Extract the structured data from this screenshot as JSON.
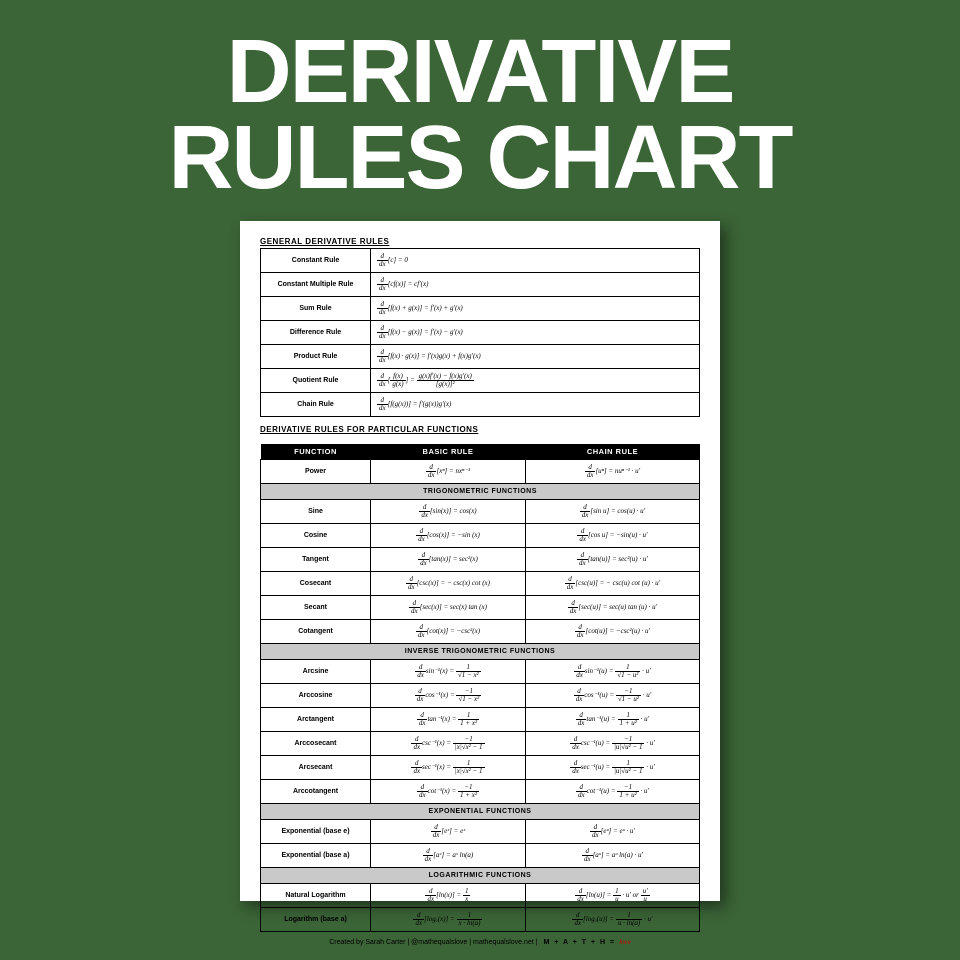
{
  "title_line1": "DERIVATIVE",
  "title_line2": "RULES CHART",
  "section1_head": "GENERAL DERIVATIVE RULES",
  "general_rules": [
    {
      "name": "Constant Rule",
      "formula_html": "<span class='frac'><span class='n'>d</span><span class='d'>dx</span></span>[c] = 0"
    },
    {
      "name": "Constant Multiple Rule",
      "formula_html": "<span class='frac'><span class='n'>d</span><span class='d'>dx</span></span>[cf(x)] = cf′(x)"
    },
    {
      "name": "Sum Rule",
      "formula_html": "<span class='frac'><span class='n'>d</span><span class='d'>dx</span></span>[f(x) + g(x)] = f′(x) + g′(x)"
    },
    {
      "name": "Difference Rule",
      "formula_html": "<span class='frac'><span class='n'>d</span><span class='d'>dx</span></span>[f(x) − g(x)] = f′(x) − g′(x)"
    },
    {
      "name": "Product Rule",
      "formula_html": "<span class='frac'><span class='n'>d</span><span class='d'>dx</span></span>[f(x) · g(x)] = f′(x)g(x) + f(x)g′(x)"
    },
    {
      "name": "Quotient Rule",
      "formula_html": "<span class='frac'><span class='n'>d</span><span class='d'>dx</span></span>[<span class='frac'><span class='n'>f(x)</span><span class='d'>g(x)</span></span>] = <span class='frac'><span class='n'>g(x)f′(x) − f(x)g′(x)</span><span class='d'>[g(x)]²</span></span>"
    },
    {
      "name": "Chain Rule",
      "formula_html": "<span class='frac'><span class='n'>d</span><span class='d'>dx</span></span>[f(g(x))] = f′(g(x))g′(x)"
    }
  ],
  "section2_head": "DERIVATIVE RULES FOR PARTICULAR FUNCTIONS",
  "col_function": "FUNCTION",
  "col_basic": "BASIC RULE",
  "col_chain": "CHAIN RULE",
  "groups": [
    {
      "subhead": null,
      "rows": [
        {
          "fn": "Power",
          "basic": "<span class='frac'><span class='n'>d</span><span class='d'>dx</span></span>[xⁿ] = nxⁿ⁻¹",
          "chain": "<span class='frac'><span class='n'>d</span><span class='d'>dx</span></span>[uⁿ] = nuⁿ⁻¹ · u′"
        }
      ]
    },
    {
      "subhead": "TRIGONOMETRIC FUNCTIONS",
      "rows": [
        {
          "fn": "Sine",
          "basic": "<span class='frac'><span class='n'>d</span><span class='d'>dx</span></span>[sin(x)] = cos(x)",
          "chain": "<span class='frac'><span class='n'>d</span><span class='d'>dx</span></span>[sin u] = cos(u) · u′"
        },
        {
          "fn": "Cosine",
          "basic": "<span class='frac'><span class='n'>d</span><span class='d'>dx</span></span>[cos(x)] = −sin (x)",
          "chain": "<span class='frac'><span class='n'>d</span><span class='d'>dx</span></span>[cos u] = −sin(u) · u′"
        },
        {
          "fn": "Tangent",
          "basic": "<span class='frac'><span class='n'>d</span><span class='d'>dx</span></span>[tan(x)] = sec²(x)",
          "chain": "<span class='frac'><span class='n'>d</span><span class='d'>dx</span></span>[tan(u)] = sec²(u) · u′"
        },
        {
          "fn": "Cosecant",
          "basic": "<span class='frac'><span class='n'>d</span><span class='d'>dx</span></span>[csc(x)] = − csc(x) cot (x)",
          "chain": "<span class='frac'><span class='n'>d</span><span class='d'>dx</span></span>[csc(u)] = − csc(u) cot (u) · u′"
        },
        {
          "fn": "Secant",
          "basic": "<span class='frac'><span class='n'>d</span><span class='d'>dx</span></span>[sec(x)] = sec(x) tan (x)",
          "chain": "<span class='frac'><span class='n'>d</span><span class='d'>dx</span></span>[sec(u)] = sec(u) tan (u) · u′"
        },
        {
          "fn": "Cotangent",
          "basic": "<span class='frac'><span class='n'>d</span><span class='d'>dx</span></span>[cot(x)] = −csc²(x)",
          "chain": "<span class='frac'><span class='n'>d</span><span class='d'>dx</span></span>[cot(u)] = −csc²(u) · u′"
        }
      ]
    },
    {
      "subhead": "INVERSE TRIGONOMETRIC FUNCTIONS",
      "rows": [
        {
          "fn": "Arcsine",
          "basic": "<span class='frac'><span class='n'>d</span><span class='d'>dx</span></span>sin⁻¹(x) = <span class='frac'><span class='n'>1</span><span class='d'>√1 − x²</span></span>",
          "chain": "<span class='frac'><span class='n'>d</span><span class='d'>dx</span></span>sin⁻¹(u) = <span class='frac'><span class='n'>1</span><span class='d'>√1 − u²</span></span> · u′"
        },
        {
          "fn": "Arccosine",
          "basic": "<span class='frac'><span class='n'>d</span><span class='d'>dx</span></span>cos⁻¹(x) = <span class='frac'><span class='n'>−1</span><span class='d'>√1 − x²</span></span>",
          "chain": "<span class='frac'><span class='n'>d</span><span class='d'>dx</span></span>cos⁻¹(u) = <span class='frac'><span class='n'>−1</span><span class='d'>√1 − u²</span></span> · u′"
        },
        {
          "fn": "Arctangent",
          "basic": "<span class='frac'><span class='n'>d</span><span class='d'>dx</span></span>tan⁻¹(x) = <span class='frac'><span class='n'>1</span><span class='d'>1 + x²</span></span>",
          "chain": "<span class='frac'><span class='n'>d</span><span class='d'>dx</span></span>tan⁻¹(u) = <span class='frac'><span class='n'>1</span><span class='d'>1 + u²</span></span> · u′"
        },
        {
          "fn": "Arccosecant",
          "basic": "<span class='frac'><span class='n'>d</span><span class='d'>dx</span></span>csc⁻¹(x) = <span class='frac'><span class='n'>−1</span><span class='d'>|x|√x² − 1</span></span>",
          "chain": "<span class='frac'><span class='n'>d</span><span class='d'>dx</span></span>csc⁻¹(u) = <span class='frac'><span class='n'>−1</span><span class='d'>|u|√u² − 1</span></span> · u′"
        },
        {
          "fn": "Arcsecant",
          "basic": "<span class='frac'><span class='n'>d</span><span class='d'>dx</span></span>sec⁻¹(x) = <span class='frac'><span class='n'>1</span><span class='d'>|x|√x² − 1</span></span>",
          "chain": "<span class='frac'><span class='n'>d</span><span class='d'>dx</span></span>sec⁻¹(u) = <span class='frac'><span class='n'>1</span><span class='d'>|u|√u² − 1</span></span> · u′"
        },
        {
          "fn": "Arccotangent",
          "basic": "<span class='frac'><span class='n'>d</span><span class='d'>dx</span></span>cot⁻¹(x) = <span class='frac'><span class='n'>−1</span><span class='d'>1 + x²</span></span>",
          "chain": "<span class='frac'><span class='n'>d</span><span class='d'>dx</span></span>cot⁻¹(u) = <span class='frac'><span class='n'>−1</span><span class='d'>1 + u²</span></span> · u′"
        }
      ]
    },
    {
      "subhead": "EXPONENTIAL FUNCTIONS",
      "rows": [
        {
          "fn": "Exponential (base e)",
          "basic": "<span class='frac'><span class='n'>d</span><span class='d'>dx</span></span>[eˣ] = eˣ",
          "chain": "<span class='frac'><span class='n'>d</span><span class='d'>dx</span></span>[eᵘ] = eᵘ · u′"
        },
        {
          "fn": "Exponential (base a)",
          "basic": "<span class='frac'><span class='n'>d</span><span class='d'>dx</span></span>[aˣ] = aˣ ln(a)",
          "chain": "<span class='frac'><span class='n'>d</span><span class='d'>dx</span></span>[aᵘ] = aᵘ ln(a) · u′"
        }
      ]
    },
    {
      "subhead": "LOGARITHMIC FUNCTIONS",
      "rows": [
        {
          "fn": "Natural Logarithm",
          "basic": "<span class='frac'><span class='n'>d</span><span class='d'>dx</span></span>[ln(x)] = <span class='frac'><span class='n'>1</span><span class='d'>x</span></span>",
          "chain": "<span class='frac'><span class='n'>d</span><span class='d'>dx</span></span>[ln(u)] = <span class='frac'><span class='n'>1</span><span class='d'>u</span></span> · u′ or <span class='frac'><span class='n'>u′</span><span class='d'>u</span></span>"
        },
        {
          "fn": "Logarithm (base a)",
          "basic": "<span class='frac'><span class='n'>d</span><span class='d'>dx</span></span>[logₐ(x)] = <span class='frac'><span class='n'>1</span><span class='d'>x · ln(a)</span></span>",
          "chain": "<span class='frac'><span class='n'>d</span><span class='d'>dx</span></span>[logₐ(u)] = <span class='frac'><span class='n'>1</span><span class='d'>u · ln(a)</span></span> · u′"
        }
      ]
    }
  ],
  "footer_credit": "Created by Sarah Carter | @mathequalslove | mathequalslove.net |",
  "logo_math": "M + A + T + H =",
  "logo_love": "love"
}
